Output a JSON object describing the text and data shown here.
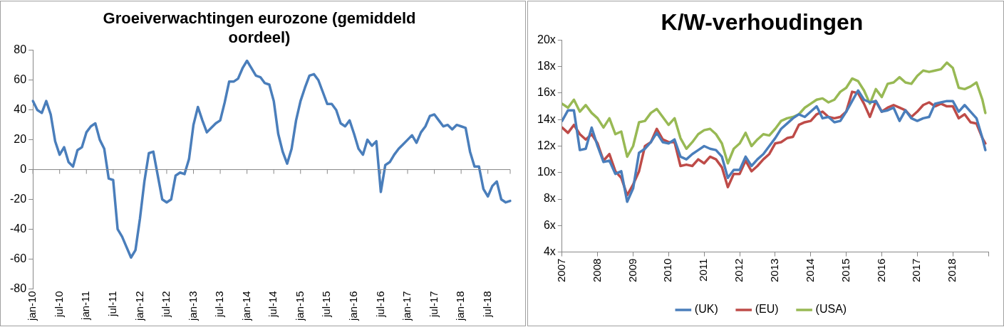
{
  "chart_data": [
    {
      "type": "line",
      "title": "Groeiverwachtingen eurozone (gemiddeld oordeel)",
      "categories": [
        "jan-10",
        null,
        null,
        null,
        null,
        null,
        "jul-10",
        null,
        null,
        null,
        null,
        null,
        "jan-11",
        null,
        null,
        null,
        null,
        null,
        "jul-11",
        null,
        null,
        null,
        null,
        null,
        "jan-12",
        null,
        null,
        null,
        null,
        null,
        "jul-12",
        null,
        null,
        null,
        null,
        null,
        "jan-13",
        null,
        null,
        null,
        null,
        null,
        "jul-13",
        null,
        null,
        null,
        null,
        null,
        "jan-14",
        null,
        null,
        null,
        null,
        null,
        "jul-14",
        null,
        null,
        null,
        null,
        null,
        "jan-15",
        null,
        null,
        null,
        null,
        null,
        "jul-15",
        null,
        null,
        null,
        null,
        null,
        "jan-16",
        null,
        null,
        null,
        null,
        null,
        "jul-16",
        null,
        null,
        null,
        null,
        null,
        "jan-17",
        null,
        null,
        null,
        null,
        null,
        "jul-17",
        null,
        null,
        null,
        null,
        null,
        "jan-18",
        null,
        null,
        null,
        null,
        null,
        "jul-18",
        null,
        null,
        null,
        null,
        null
      ],
      "series": [
        {
          "color": "#4a7ebb",
          "values": [
            46,
            40,
            38,
            46,
            37,
            19,
            10,
            15,
            5,
            2,
            13,
            15,
            25,
            29,
            31,
            20,
            14,
            -6,
            -7,
            -40,
            -45,
            -52,
            -59,
            -54,
            -33,
            -8,
            11,
            12,
            -4,
            -20,
            -22,
            -20,
            -4,
            -2,
            -3,
            7,
            30,
            42,
            33,
            25,
            28,
            31,
            33,
            45,
            59,
            59,
            61,
            68,
            73,
            68,
            63,
            62,
            58,
            57,
            46,
            24,
            12,
            4,
            14,
            33,
            46,
            55,
            63,
            64,
            60,
            52,
            44,
            44,
            40,
            31,
            29,
            33,
            24,
            14,
            10,
            20,
            16,
            19,
            -15,
            3,
            5,
            10,
            14,
            17,
            20,
            23,
            18,
            25,
            29,
            36,
            37,
            33,
            29,
            30,
            27,
            30,
            29,
            28,
            12,
            2,
            2,
            -13,
            -18,
            -11,
            -8,
            -20,
            -22,
            -21
          ]
        }
      ],
      "ylim": [
        -80,
        80
      ],
      "yticks": [
        -80,
        -60,
        -40,
        -20,
        0,
        20,
        40,
        60,
        80
      ],
      "ref_lines": [
        {
          "axis": "y",
          "value": 0,
          "color": "#888888"
        }
      ],
      "grid": false,
      "legend": false,
      "line_style": "solid",
      "marker": "none"
    },
    {
      "type": "line",
      "title": "K/W-verhoudingen",
      "x": [
        "2007-01",
        "2007-03",
        "2007-05",
        "2007-07",
        "2007-09",
        "2007-11",
        "2008-01",
        "2008-03",
        "2008-05",
        "2008-07",
        "2008-09",
        "2008-11",
        "2009-01",
        "2009-03",
        "2009-05",
        "2009-07",
        "2009-09",
        "2009-11",
        "2010-01",
        "2010-03",
        "2010-05",
        "2010-07",
        "2010-09",
        "2010-11",
        "2011-01",
        "2011-03",
        "2011-05",
        "2011-07",
        "2011-09",
        "2011-11",
        "2012-01",
        "2012-03",
        "2012-05",
        "2012-07",
        "2012-09",
        "2012-11",
        "2013-01",
        "2013-03",
        "2013-05",
        "2013-07",
        "2013-09",
        "2013-11",
        "2014-01",
        "2014-03",
        "2014-05",
        "2014-07",
        "2014-09",
        "2014-11",
        "2015-01",
        "2015-03",
        "2015-05",
        "2015-07",
        "2015-09",
        "2015-11",
        "2016-01",
        "2016-03",
        "2016-05",
        "2016-07",
        "2016-09",
        "2016-11",
        "2017-01",
        "2017-03",
        "2017-05",
        "2017-07",
        "2017-09",
        "2017-11",
        "2018-01",
        "2018-03",
        "2018-05",
        "2018-07",
        "2018-09",
        "2018-11",
        "2018-12"
      ],
      "series": [
        {
          "name": "(UK)",
          "color": "#4a7ebb",
          "values": [
            13.9,
            14.7,
            14.7,
            11.7,
            11.8,
            13.4,
            12.0,
            10.8,
            10.9,
            9.9,
            10.1,
            7.8,
            8.8,
            11.5,
            11.8,
            12.3,
            13.0,
            12.3,
            12.2,
            12.5,
            11.2,
            11.0,
            11.4,
            11.7,
            12.0,
            11.8,
            11.7,
            11.2,
            9.6,
            10.2,
            10.2,
            11.2,
            10.5,
            11.0,
            11.4,
            12.0,
            12.6,
            13.3,
            13.7,
            14.1,
            14.4,
            14.2,
            14.6,
            15.0,
            14.1,
            14.2,
            13.8,
            13.9,
            14.6,
            15.4,
            16.2,
            15.5,
            15.3,
            15.4,
            14.6,
            14.7,
            14.9,
            13.9,
            14.7,
            14.1,
            13.9,
            14.1,
            14.2,
            15.2,
            15.3,
            15.4,
            15.4,
            14.6,
            15.1,
            14.6,
            14.1,
            12.6,
            11.7
          ]
        },
        {
          "name": "(EU)",
          "color": "#be4b48",
          "values": [
            13.4,
            13.0,
            13.6,
            12.9,
            12.5,
            12.9,
            12.2,
            10.9,
            11.4,
            10.1,
            9.6,
            8.3,
            9.1,
            10.1,
            12.0,
            12.3,
            13.3,
            12.5,
            12.3,
            12.3,
            10.5,
            10.6,
            10.5,
            11.0,
            10.7,
            11.2,
            11.0,
            10.4,
            8.9,
            9.9,
            9.9,
            10.9,
            10.1,
            10.5,
            11.0,
            11.4,
            12.2,
            12.3,
            12.6,
            12.7,
            13.6,
            13.8,
            13.9,
            14.4,
            14.6,
            14.2,
            14.1,
            14.2,
            14.6,
            16.1,
            16.0,
            15.2,
            14.2,
            15.4,
            14.6,
            14.9,
            15.1,
            14.9,
            14.7,
            14.2,
            14.6,
            15.1,
            15.3,
            15.0,
            15.2,
            15.0,
            15.0,
            14.1,
            14.4,
            13.8,
            13.7,
            12.6,
            12.2
          ]
        },
        {
          "name": "(USA)",
          "color": "#98b954",
          "values": [
            15.2,
            14.9,
            15.5,
            14.6,
            15.1,
            14.5,
            14.1,
            13.4,
            14.1,
            12.9,
            13.1,
            11.2,
            12.0,
            13.8,
            13.9,
            14.5,
            14.8,
            14.2,
            13.6,
            14.1,
            12.6,
            11.8,
            12.3,
            12.9,
            13.2,
            13.3,
            12.9,
            12.2,
            10.7,
            11.8,
            12.2,
            13.0,
            12.0,
            12.5,
            12.9,
            12.8,
            13.3,
            13.9,
            14.1,
            14.2,
            14.4,
            14.9,
            15.2,
            15.5,
            15.6,
            15.3,
            15.5,
            16.1,
            16.4,
            17.1,
            16.9,
            16.2,
            15.2,
            16.3,
            15.7,
            16.7,
            16.8,
            17.2,
            16.8,
            16.7,
            17.3,
            17.7,
            17.6,
            17.7,
            17.8,
            18.3,
            17.9,
            16.4,
            16.3,
            16.5,
            16.8,
            15.5,
            14.5
          ]
        }
      ],
      "xlim": [
        "2007",
        "2019"
      ],
      "xticks": [
        "2007",
        "2008",
        "2009",
        "2010",
        "2011",
        "2012",
        "2013",
        "2014",
        "2015",
        "2016",
        "2017",
        "2018",
        {
          "value": "2019",
          "label": null
        }
      ],
      "ylim": [
        4,
        20
      ],
      "yticks": [
        {
          "value": 4,
          "label": "4x"
        },
        {
          "value": 6,
          "label": "6x"
        },
        {
          "value": 8,
          "label": "8x"
        },
        {
          "value": 10,
          "label": "10x"
        },
        {
          "value": 12,
          "label": "12x"
        },
        {
          "value": 14,
          "label": "14x"
        },
        {
          "value": 16,
          "label": "16x"
        },
        {
          "value": 18,
          "label": "18x"
        },
        {
          "value": 20,
          "label": "20x"
        }
      ],
      "grid": false,
      "legend": "bottom",
      "line_style": "solid",
      "marker": "none"
    }
  ]
}
